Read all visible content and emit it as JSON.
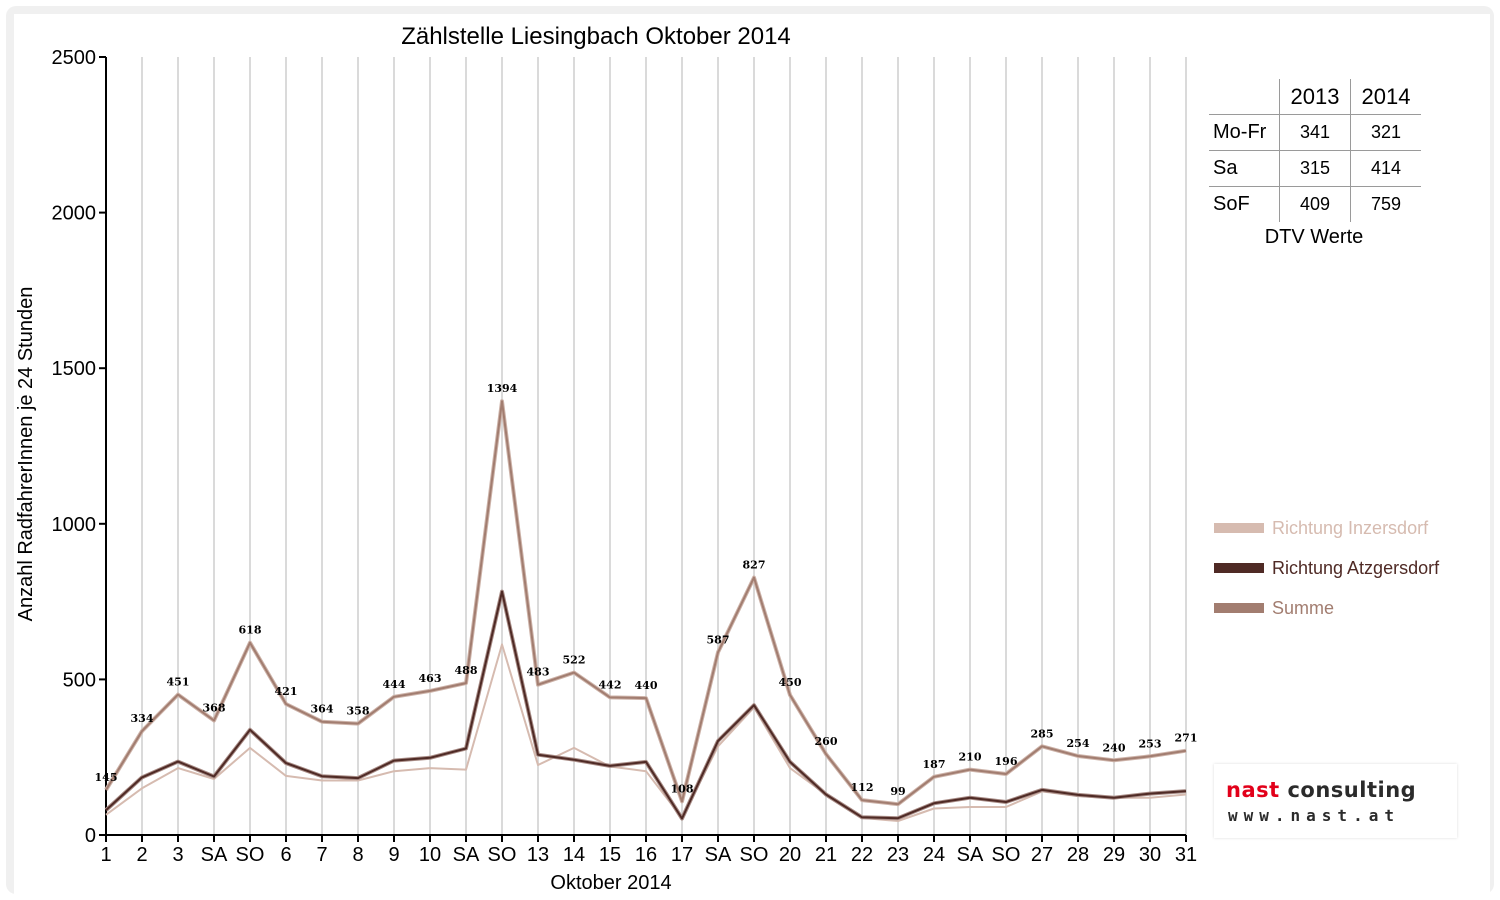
{
  "colors": {
    "inzersdorf": "#d6bbb0",
    "atzgersdorf": "#4f2a25",
    "summe": "#a27d70",
    "weekend_label": "#e00000"
  },
  "chart_data": {
    "type": "line",
    "title": "Zählstelle Liesingbach Oktober 2014",
    "xlabel": "Oktober 2014",
    "ylabel": "Anzahl RadfahrerInnen je 24 Stunden",
    "ylim": [
      0,
      2500
    ],
    "yticks": [
      0,
      500,
      1000,
      1500,
      2000,
      2500
    ],
    "grid": true,
    "legend_position": "right",
    "categories": [
      "1",
      "2",
      "3",
      "SA",
      "SO",
      "6",
      "7",
      "8",
      "9",
      "10",
      "SA",
      "SO",
      "13",
      "14",
      "15",
      "16",
      "17",
      "SA",
      "SO",
      "20",
      "21",
      "22",
      "23",
      "24",
      "SA",
      "SO",
      "27",
      "28",
      "29",
      "30",
      "31"
    ],
    "weekend_days": [
      5,
      12,
      19,
      26
    ],
    "series": [
      {
        "name": "Richtung Inzersdorf",
        "values": [
          65,
          150,
          215,
          180,
          280,
          190,
          175,
          175,
          205,
          215,
          210,
          612,
          225,
          280,
          220,
          205,
          55,
          285,
          410,
          215,
          130,
          55,
          45,
          85,
          90,
          90,
          140,
          125,
          120,
          120,
          130
        ]
      },
      {
        "name": "Richtung Atzgersdorf",
        "values": [
          80,
          185,
          236,
          188,
          338,
          231,
          189,
          183,
          239,
          248,
          278,
          782,
          258,
          242,
          222,
          235,
          53,
          302,
          417,
          235,
          130,
          57,
          54,
          102,
          120,
          106,
          145,
          129,
          120,
          133,
          141
        ]
      },
      {
        "name": "Summe",
        "values": [
          145,
          334,
          451,
          368,
          618,
          421,
          364,
          358,
          444,
          463,
          488,
          1394,
          483,
          522,
          442,
          440,
          108,
          587,
          827,
          450,
          260,
          112,
          99,
          187,
          210,
          196,
          285,
          254,
          240,
          253,
          271
        ]
      }
    ]
  },
  "dtv_table": {
    "columns": [
      "2013",
      "2014"
    ],
    "rows": [
      {
        "label": "Mo-Fr",
        "values": [
          "341",
          "321"
        ]
      },
      {
        "label": "Sa",
        "values": [
          "315",
          "414"
        ]
      },
      {
        "label": "SoF",
        "values": [
          "409",
          "759"
        ]
      }
    ],
    "caption": "DTV Werte"
  },
  "logo": {
    "name_part1": "nast",
    "name_part2": "consulting",
    "website": "www.nast.at"
  }
}
